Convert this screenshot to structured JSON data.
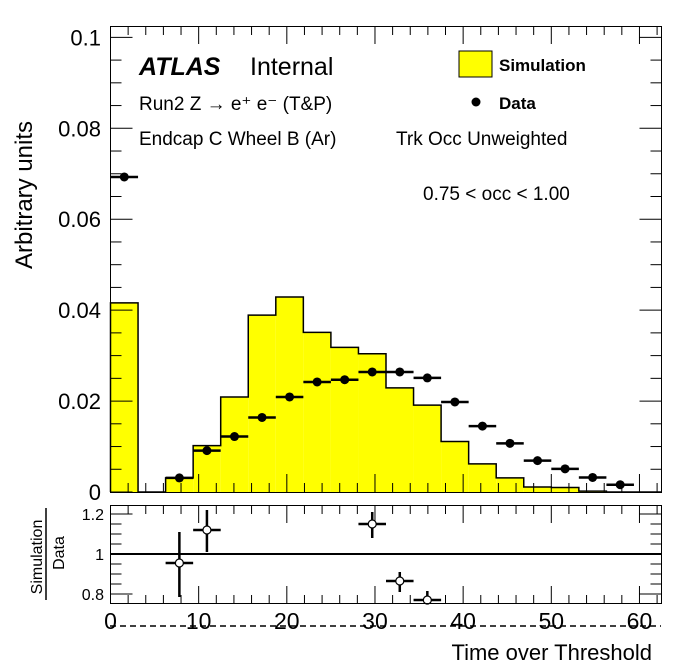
{
  "chart_data": [
    {
      "type": "bar",
      "panel": "main",
      "xlabel": "",
      "ylabel": "Arbitrary units",
      "xlim": [
        0,
        62.5
      ],
      "ylim": [
        0,
        0.1025
      ],
      "yticks": [
        "0",
        "0.02",
        "0.04",
        "0.06",
        "0.08",
        "0.1"
      ],
      "ytick_values": [
        0,
        0.02,
        0.04,
        0.06,
        0.08,
        0.1
      ],
      "bin_edges": [
        0,
        3.125,
        6.25,
        9.375,
        12.5,
        15.625,
        18.75,
        21.875,
        25,
        28.125,
        31.25,
        34.375,
        37.5,
        40.625,
        43.75,
        46.875,
        50,
        53.125,
        56.25,
        59.375,
        62.5
      ],
      "series": [
        {
          "name": "Simulation",
          "kind": "histogram",
          "color": "#ffff00",
          "values": [
            0.0416,
            0,
            0.0031,
            0.0102,
            0.0209,
            0.0389,
            0.0429,
            0.0351,
            0.0318,
            0.0304,
            0.0229,
            0.0191,
            0.0111,
            0.0062,
            0.0031,
            0.0011,
            0.001,
            0.0002,
            0,
            0
          ]
        },
        {
          "name": "Data",
          "kind": "points",
          "color": "#000000",
          "values": [
            0.0693,
            null,
            0.0031,
            0.0091,
            0.0122,
            0.0164,
            0.0209,
            0.0242,
            0.0247,
            0.0264,
            0.0264,
            0.0251,
            0.0198,
            0.0145,
            0.0107,
            0.0069,
            0.0051,
            0.0032,
            0.0016,
            null
          ]
        }
      ],
      "legend": {
        "position": "top-right",
        "entries": [
          {
            "label": "Simulation",
            "marker": "box",
            "color": "#ffff00"
          },
          {
            "label": "Data",
            "marker": "dot",
            "color": "#000000"
          }
        ]
      },
      "annotations": {
        "atlas": "ATLAS",
        "atlas_status": "Internal",
        "process": "Run2 Z → e⁺ e⁻ (T&P)",
        "region": "Endcap C Wheel B (Ar)",
        "weighting": "Trk Occ Unweighted",
        "occupancy_range": "0.75 < occ < 1.00"
      }
    },
    {
      "type": "scatter",
      "panel": "ratio",
      "xlabel": "Time over Threshold",
      "ylabel_numerator": "Simulation",
      "ylabel_denominator": "Data",
      "xlim": [
        0,
        62.5
      ],
      "ylim": [
        0.75,
        1.245
      ],
      "xticks": [
        "0",
        "10",
        "20",
        "30",
        "40",
        "50",
        "60"
      ],
      "xtick_values": [
        0,
        10,
        20,
        30,
        40,
        50,
        60
      ],
      "yticks": [
        "0.8",
        "1",
        "1.2"
      ],
      "ytick_values": [
        0.8,
        1.0,
        1.2
      ],
      "reference_line": 1.0,
      "points": [
        {
          "x": 7.8125,
          "y": 0.955,
          "ylow": 0.785,
          "yhigh": 1.11
        },
        {
          "x": 10.9375,
          "y": 1.12,
          "ylow": 1.01,
          "yhigh": 1.22
        },
        {
          "x": 29.6875,
          "y": 1.15,
          "ylow": 1.08,
          "yhigh": 1.21
        },
        {
          "x": 32.8125,
          "y": 0.865,
          "ylow": 0.81,
          "yhigh": 0.91
        },
        {
          "x": 35.9375,
          "y": 0.77,
          "ylow": 0.75,
          "yhigh": 0.815
        }
      ]
    }
  ]
}
